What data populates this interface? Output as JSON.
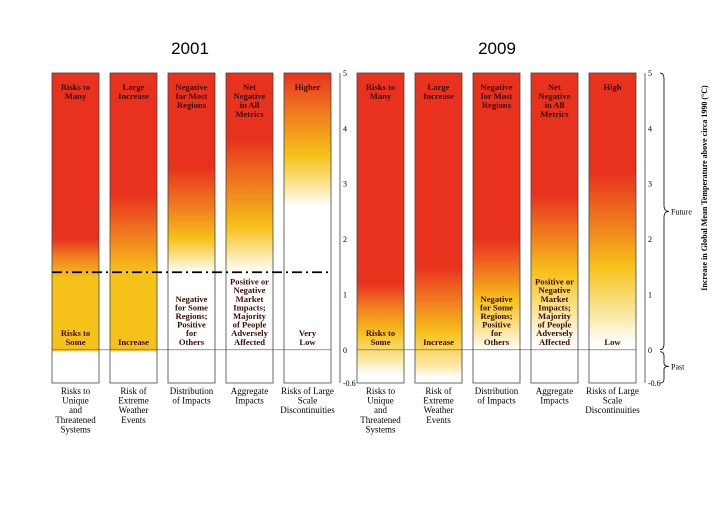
{
  "chart_data": [
    {
      "type": "bar",
      "title": "2001",
      "ylim": [
        -0.6,
        5
      ],
      "yticks": [
        "-0.6",
        "0",
        "1",
        "2",
        "3",
        "4",
        "5"
      ],
      "threshold_line": 1.4,
      "categories": [
        "Risks to Unique and Threatened Systems",
        "Risk of Extreme Weather Events",
        "Distribution of Impacts",
        "Aggregate Impacts",
        "Risks of Large Scale Discontinuities"
      ],
      "category_lines": [
        [
          "Risks to",
          "Unique",
          "and",
          "Threatened",
          "Systems"
        ],
        [
          "Risk of",
          "Extreme",
          "Weather",
          "Events"
        ],
        [
          "Distribution",
          "of Impacts"
        ],
        [
          "Aggregate",
          "Impacts"
        ],
        [
          "Risks of Large",
          "Scale",
          "Discontinuities"
        ]
      ],
      "top_labels": [
        [
          "Risks to",
          "Many"
        ],
        [
          "Large",
          "Increase"
        ],
        [
          "Negative",
          "for Most",
          "Regions"
        ],
        [
          "Net",
          "Negative",
          "in All",
          "Metrics"
        ],
        [
          "Higher"
        ]
      ],
      "bottom_labels": [
        [
          "Risks to",
          "Some"
        ],
        [
          "Increase"
        ],
        [
          "Negative",
          "for Some",
          "Regions;",
          "Positive",
          "for",
          "Others"
        ],
        [
          "Positive or",
          "Negative",
          "Market",
          "Impacts;",
          "Majority",
          "of People",
          "Adversely",
          "Affected"
        ],
        [
          "Very",
          "Low"
        ]
      ]
    },
    {
      "type": "bar",
      "title": "2009",
      "ylim": [
        -0.6,
        5
      ],
      "yticks": [
        "-0.6",
        "0",
        "1",
        "2",
        "3",
        "4",
        "5"
      ],
      "categories": [
        "Risks to Unique and Threatened Systems",
        "Risk of Extreme Weather Events",
        "Distribution of Impacts",
        "Aggregate Impacts",
        "Risks of Large Scale Discontinuities"
      ],
      "category_lines": [
        [
          "Risks to",
          "Unique",
          "and",
          "Threatened",
          "Systems"
        ],
        [
          "Risk of",
          "Extreme",
          "Weather",
          "Events"
        ],
        [
          "Distribution",
          "of Impacts"
        ],
        [
          "Aggregate",
          "Impacts"
        ],
        [
          "Risks of Large",
          "Scale",
          "Discontinuities"
        ]
      ],
      "top_labels": [
        [
          "Risks to",
          "Many"
        ],
        [
          "Large",
          "Increase"
        ],
        [
          "Negative",
          "for Most",
          "Regions"
        ],
        [
          "Net",
          "Negative",
          "in All",
          "Metrics"
        ],
        [
          "High"
        ]
      ],
      "bottom_labels": [
        [
          "Risks to",
          "Some"
        ],
        [
          "Increase"
        ],
        [
          "Negative",
          "for Some",
          "Regions;",
          "Positive",
          "for",
          "Others"
        ],
        [
          "Positive or",
          "Negative",
          "Market",
          "Impacts;",
          "Majority",
          "of People",
          "Adversely",
          "Affected"
        ],
        [
          "Low"
        ]
      ]
    }
  ],
  "axis": {
    "title": "Increase in Global Mean Temperature above circa 1990 (°C)",
    "future_label": "Future",
    "past_label": "Past"
  },
  "colors": {
    "red": "#e8321e",
    "orange": "#f07a1e",
    "yellow": "#f6c21a",
    "pale": "#fbe9a8",
    "white": "#ffffff"
  }
}
